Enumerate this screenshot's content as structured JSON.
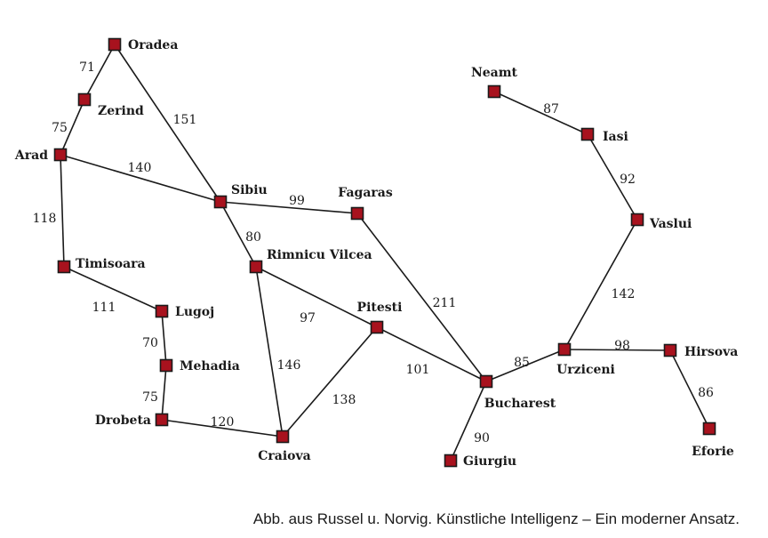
{
  "colors": {
    "node_fill": "#a8121e",
    "line": "#1a1a1a"
  },
  "cities": [
    {
      "id": "oradea",
      "name": "Oradea"
    },
    {
      "id": "zerind",
      "name": "Zerind"
    },
    {
      "id": "arad",
      "name": "Arad"
    },
    {
      "id": "timisoara",
      "name": "Timisoara"
    },
    {
      "id": "lugoj",
      "name": "Lugoj"
    },
    {
      "id": "mehadia",
      "name": "Mehadia"
    },
    {
      "id": "drobeta",
      "name": "Drobeta"
    },
    {
      "id": "craiova",
      "name": "Craiova"
    },
    {
      "id": "sibiu",
      "name": "Sibiu"
    },
    {
      "id": "rimnicu",
      "name": "Rimnicu Vilcea"
    },
    {
      "id": "fagaras",
      "name": "Fagaras"
    },
    {
      "id": "pitesti",
      "name": "Pitesti"
    },
    {
      "id": "bucharest",
      "name": "Bucharest"
    },
    {
      "id": "giurgiu",
      "name": "Giurgiu"
    },
    {
      "id": "urziceni",
      "name": "Urziceni"
    },
    {
      "id": "hirsova",
      "name": "Hirsova"
    },
    {
      "id": "eforie",
      "name": "Eforie"
    },
    {
      "id": "vaslui",
      "name": "Vaslui"
    },
    {
      "id": "iasi",
      "name": "Iasi"
    },
    {
      "id": "neamt",
      "name": "Neamt"
    }
  ],
  "roads": [
    {
      "from": "oradea",
      "to": "zerind",
      "distance": "71"
    },
    {
      "from": "zerind",
      "to": "arad",
      "distance": "75"
    },
    {
      "from": "oradea",
      "to": "sibiu",
      "distance": "151"
    },
    {
      "from": "arad",
      "to": "sibiu",
      "distance": "140"
    },
    {
      "from": "arad",
      "to": "timisoara",
      "distance": "118"
    },
    {
      "from": "timisoara",
      "to": "lugoj",
      "distance": "111"
    },
    {
      "from": "lugoj",
      "to": "mehadia",
      "distance": "70"
    },
    {
      "from": "mehadia",
      "to": "drobeta",
      "distance": "75"
    },
    {
      "from": "drobeta",
      "to": "craiova",
      "distance": "120"
    },
    {
      "from": "sibiu",
      "to": "fagaras",
      "distance": "99"
    },
    {
      "from": "sibiu",
      "to": "rimnicu",
      "distance": "80"
    },
    {
      "from": "rimnicu",
      "to": "craiova",
      "distance": "146"
    },
    {
      "from": "rimnicu",
      "to": "pitesti",
      "distance": "97"
    },
    {
      "from": "craiova",
      "to": "pitesti",
      "distance": "138"
    },
    {
      "from": "pitesti",
      "to": "bucharest",
      "distance": "101"
    },
    {
      "from": "fagaras",
      "to": "bucharest",
      "distance": "211"
    },
    {
      "from": "bucharest",
      "to": "giurgiu",
      "distance": "90"
    },
    {
      "from": "bucharest",
      "to": "urziceni",
      "distance": "85"
    },
    {
      "from": "urziceni",
      "to": "hirsova",
      "distance": "98"
    },
    {
      "from": "hirsova",
      "to": "eforie",
      "distance": "86"
    },
    {
      "from": "urziceni",
      "to": "vaslui",
      "distance": "142"
    },
    {
      "from": "vaslui",
      "to": "iasi",
      "distance": "92"
    },
    {
      "from": "iasi",
      "to": "neamt",
      "distance": "87"
    }
  ],
  "caption": "Abb. aus Russel u. Norvig. Künstliche Intelligenz – Ein moderner Ansatz."
}
